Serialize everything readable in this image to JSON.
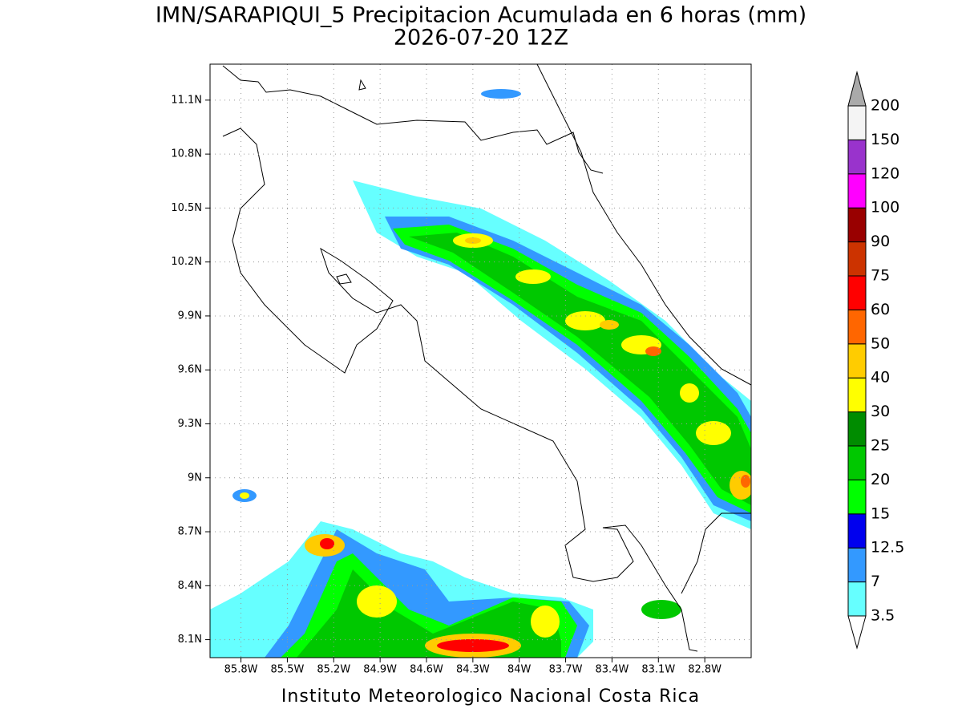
{
  "title": "IMN/SARAPIQUI_5 Precipitacion Acumulada en 6 horas (mm)",
  "subtitle": "2026-07-20 12Z",
  "footer": "Instituto Meteorologico Nacional Costa Rica",
  "map": {
    "latlim": [
      8.0,
      11.3
    ],
    "lonlim": [
      -86.0,
      -82.5
    ],
    "lat_ticks": [
      {
        "value": 8.1,
        "label": "8.1N"
      },
      {
        "value": 8.4,
        "label": "8.4N"
      },
      {
        "value": 8.7,
        "label": "8.7N"
      },
      {
        "value": 9,
        "label": "9N"
      },
      {
        "value": 9.3,
        "label": "9.3N"
      },
      {
        "value": 9.6,
        "label": "9.6N"
      },
      {
        "value": 9.9,
        "label": "9.9N"
      },
      {
        "value": 10.2,
        "label": "10.2N"
      },
      {
        "value": 10.5,
        "label": "10.5N"
      },
      {
        "value": 10.8,
        "label": "10.8N"
      },
      {
        "value": 11.1,
        "label": "11.1N"
      }
    ],
    "lon_ticks": [
      {
        "value": -85.8,
        "label": "85.8W"
      },
      {
        "value": -85.5,
        "label": "85.5W"
      },
      {
        "value": -85.2,
        "label": "85.2W"
      },
      {
        "value": -84.9,
        "label": "84.9W"
      },
      {
        "value": -84.6,
        "label": "84.6W"
      },
      {
        "value": -84.3,
        "label": "84.3W"
      },
      {
        "value": -84,
        "label": "84W"
      },
      {
        "value": -83.7,
        "label": "83.7W"
      },
      {
        "value": -83.4,
        "label": "83.4W"
      },
      {
        "value": -83.1,
        "label": "83.1W"
      },
      {
        "value": -82.8,
        "label": "82.8W"
      }
    ],
    "grid": true
  },
  "colorbar": {
    "levels": [
      3.5,
      7,
      12.5,
      15,
      20,
      25,
      30,
      40,
      50,
      60,
      75,
      90,
      100,
      120,
      150,
      200
    ],
    "colors": [
      "#66ffff",
      "#3399ff",
      "#0000ee",
      "#00ff00",
      "#00c800",
      "#008c00",
      "#ffff00",
      "#ffcc00",
      "#ff6600",
      "#ff0000",
      "#cc3300",
      "#990000",
      "#ff00ff",
      "#9933cc",
      "#f4f4f4"
    ],
    "under_color": "#ffffff",
    "over_color": "#aaaaaa"
  }
}
